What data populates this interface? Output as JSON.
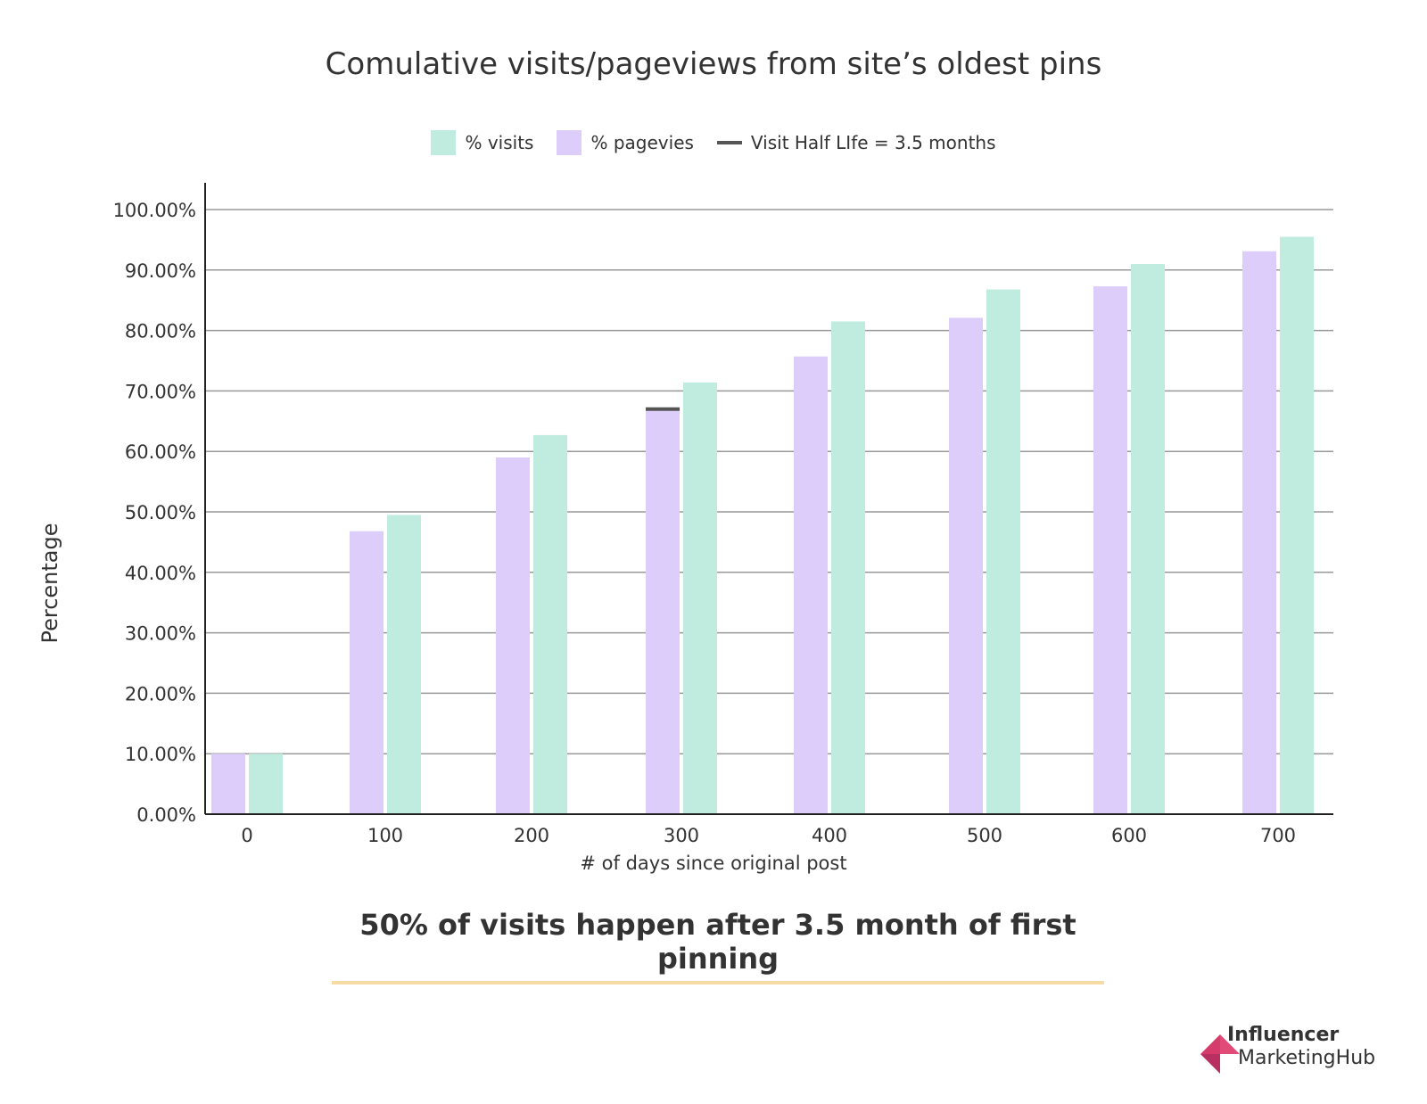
{
  "chart_data": {
    "type": "bar",
    "title": "Comulative visits/pageviews from site’s oldest pins",
    "xlabel": "# of days since original post",
    "ylabel": "Percentage",
    "categories": [
      "0",
      "100",
      "200",
      "300",
      "400",
      "500",
      "600",
      "700"
    ],
    "series": [
      {
        "name": "% pagevies",
        "color": "#ddcdfa",
        "values": [
          10.0,
          46.8,
          59.0,
          67.0,
          75.7,
          82.1,
          87.3,
          93.1
        ]
      },
      {
        "name": "% visits",
        "color": "#c0ecdf",
        "values": [
          10.0,
          49.5,
          62.7,
          71.4,
          81.5,
          86.8,
          91.0,
          95.5
        ]
      }
    ],
    "reference_line": {
      "name": "Visit Half LIfe = 3.5 months",
      "category": "300",
      "value": 67.0,
      "color": "#555555"
    },
    "y_ticks": [
      "0.00%",
      "10.00%",
      "20.00%",
      "30.00%",
      "40.00%",
      "50.00%",
      "60.00%",
      "70.00%",
      "80.00%",
      "90.00%",
      "100.00%"
    ],
    "ylim": [
      0,
      100
    ],
    "grid": true,
    "legend_position": "top-center"
  },
  "headline": "50% of visits happen after 3.5 month of first pinning",
  "brand": {
    "line1": "Influencer",
    "line2": "MarketingHub",
    "accent_color": "#d63c6b"
  },
  "colors": {
    "axis": "#222222",
    "grid": "#999999",
    "underline": "#f6dca4"
  }
}
